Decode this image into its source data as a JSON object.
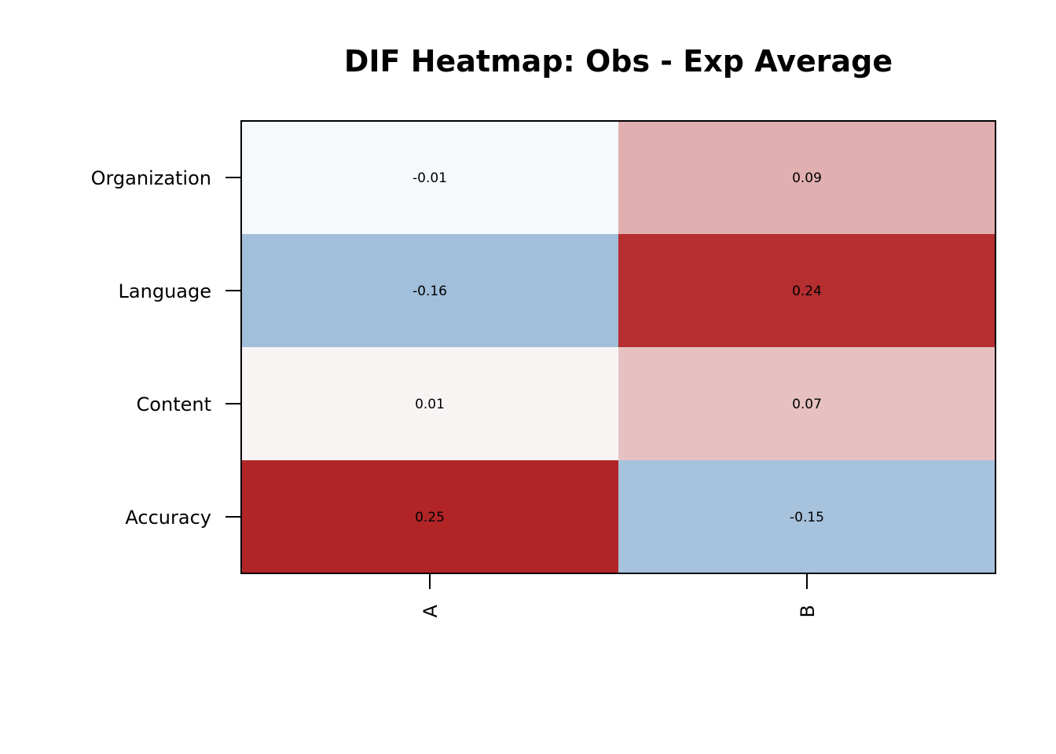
{
  "chart_data": {
    "type": "heatmap",
    "title": "DIF Heatmap: Obs - Exp Average",
    "xlabel": "",
    "ylabel": "",
    "columns": [
      "A",
      "B"
    ],
    "rows": [
      "Organization",
      "Language",
      "Content",
      "Accuracy"
    ],
    "values": [
      [
        -0.01,
        0.09
      ],
      [
        -0.16,
        0.24
      ],
      [
        0.01,
        0.07
      ],
      [
        0.25,
        -0.15
      ]
    ],
    "value_labels": [
      [
        "-0.01",
        "0.09"
      ],
      [
        "-0.16",
        "0.24"
      ],
      [
        "0.01",
        "0.07"
      ],
      [
        "0.25",
        "-0.15"
      ]
    ],
    "color_scale": {
      "negative": "#6f9bc6",
      "neutral": "#fbfdfd",
      "positive": "#b22527",
      "min": -0.25,
      "max": 0.25
    },
    "grid": false,
    "legend": "none"
  }
}
